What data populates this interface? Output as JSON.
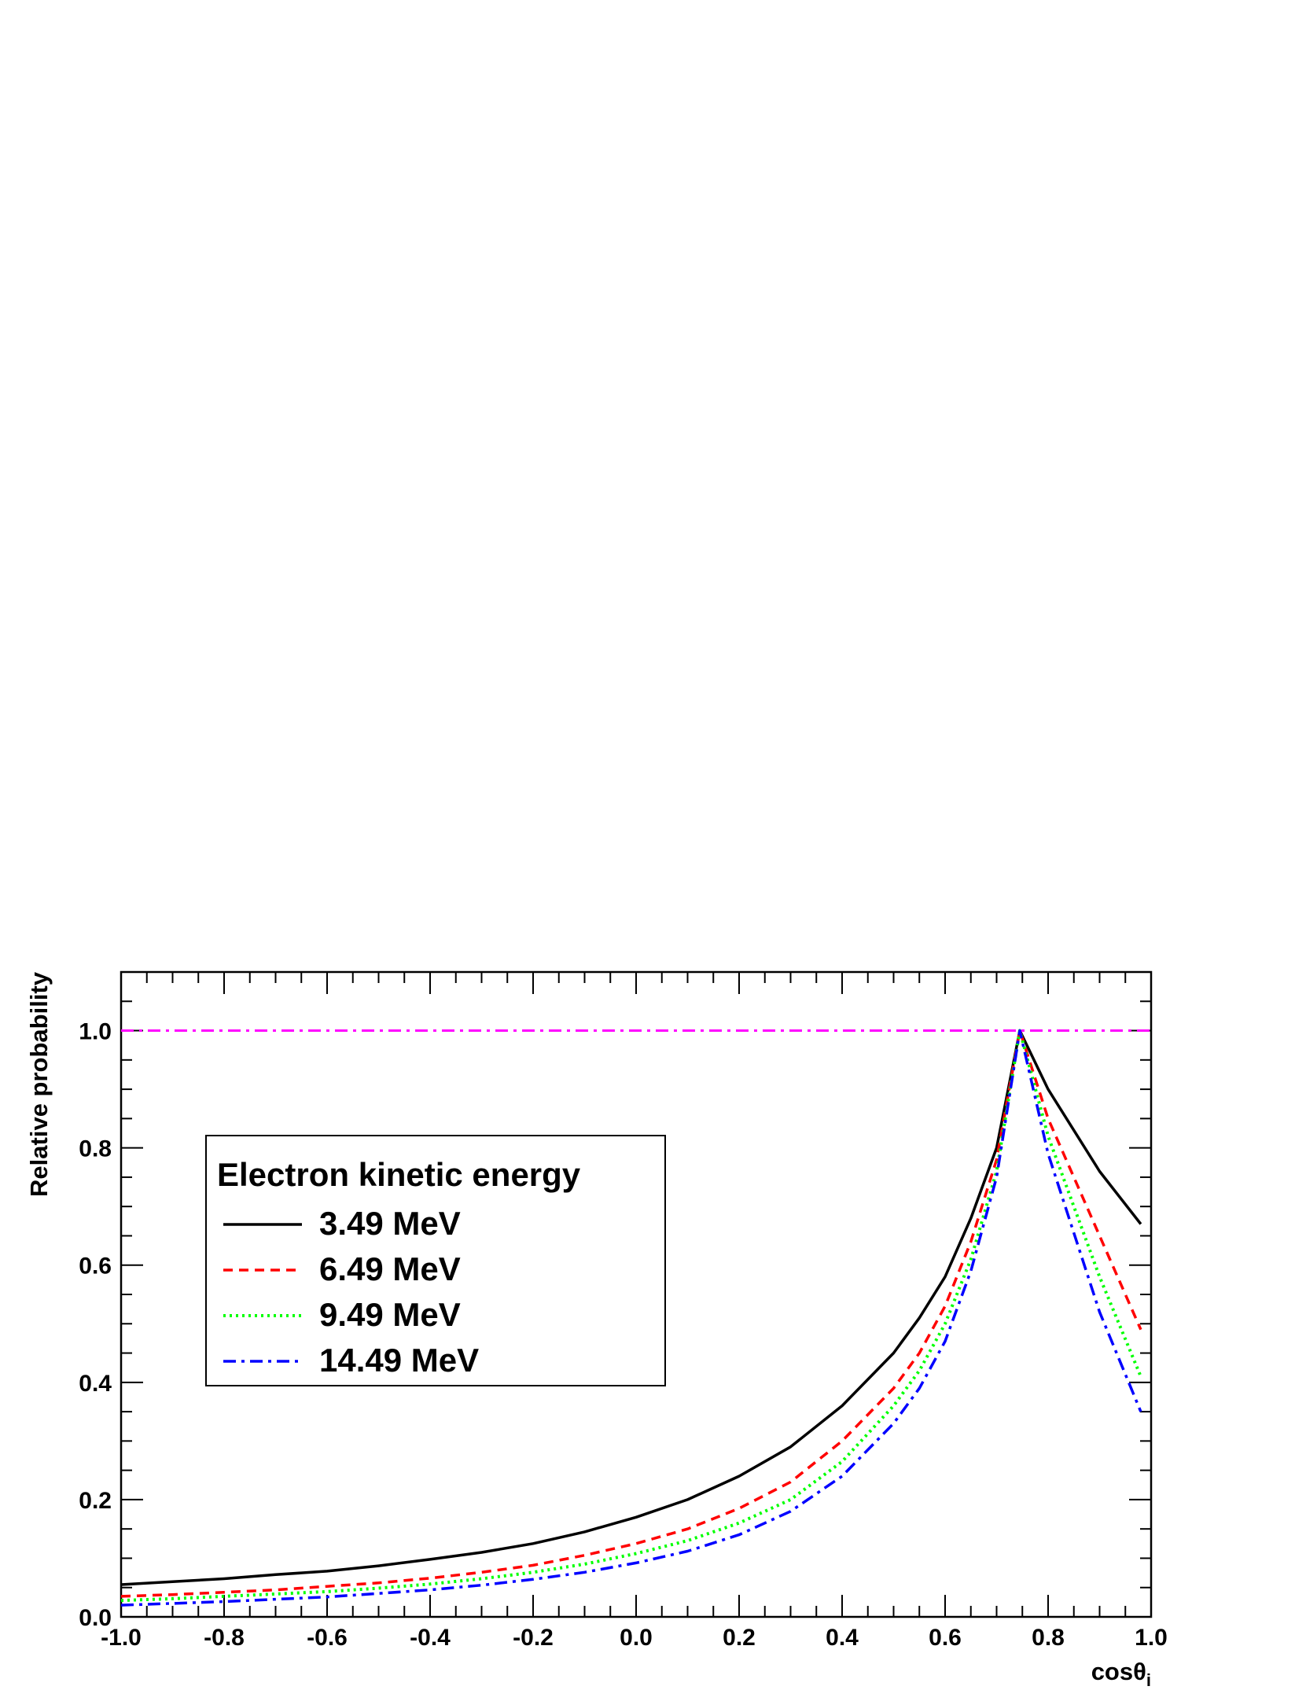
{
  "chart_data": {
    "type": "line",
    "xlabel": "cosθ",
    "xlabel_subscript": "i",
    "ylabel": "Relative probability",
    "xlim": [
      -1.0,
      1.0
    ],
    "ylim": [
      0.0,
      1.1
    ],
    "x_ticks": [
      "-1.0",
      "-0.8",
      "-0.6",
      "-0.4",
      "-0.2",
      "0.0",
      "0.2",
      "0.4",
      "0.6",
      "0.8",
      "1.0"
    ],
    "y_ticks": [
      "0.0",
      "0.2",
      "0.4",
      "0.6",
      "0.8",
      "1.0"
    ],
    "grid": false,
    "legend": {
      "title": "Electron kinetic energy",
      "placement": "middle-left"
    },
    "reference_line": {
      "y": 1.0,
      "color": "#ff00ff",
      "style": "dash-dot"
    },
    "x": [
      -1.0,
      -0.9,
      -0.8,
      -0.7,
      -0.6,
      -0.5,
      -0.4,
      -0.3,
      -0.2,
      -0.1,
      0.0,
      0.1,
      0.2,
      0.3,
      0.4,
      0.5,
      0.55,
      0.6,
      0.65,
      0.7,
      0.745,
      0.8,
      0.9,
      0.98
    ],
    "series": [
      {
        "name": "3.49 MeV",
        "color": "#000000",
        "style": "solid",
        "values": [
          0.055,
          0.06,
          0.065,
          0.072,
          0.078,
          0.087,
          0.098,
          0.11,
          0.125,
          0.145,
          0.17,
          0.2,
          0.24,
          0.29,
          0.36,
          0.45,
          0.51,
          0.58,
          0.68,
          0.8,
          1.0,
          0.9,
          0.76,
          0.67
        ]
      },
      {
        "name": "6.49 MeV",
        "color": "#ff0000",
        "style": "dashed",
        "values": [
          0.035,
          0.038,
          0.042,
          0.046,
          0.052,
          0.058,
          0.066,
          0.076,
          0.088,
          0.105,
          0.125,
          0.15,
          0.185,
          0.23,
          0.3,
          0.39,
          0.45,
          0.53,
          0.64,
          0.78,
          1.0,
          0.85,
          0.65,
          0.49
        ]
      },
      {
        "name": "9.49 MeV",
        "color": "#00ff00",
        "style": "dotted",
        "values": [
          0.028,
          0.031,
          0.035,
          0.039,
          0.043,
          0.049,
          0.056,
          0.065,
          0.076,
          0.09,
          0.108,
          0.13,
          0.16,
          0.2,
          0.265,
          0.36,
          0.42,
          0.5,
          0.61,
          0.76,
          1.0,
          0.82,
          0.58,
          0.41
        ]
      },
      {
        "name": "14.49 MeV",
        "color": "#0000ff",
        "style": "dash-dot",
        "values": [
          0.02,
          0.023,
          0.026,
          0.03,
          0.034,
          0.04,
          0.046,
          0.054,
          0.064,
          0.076,
          0.092,
          0.112,
          0.14,
          0.18,
          0.24,
          0.33,
          0.39,
          0.47,
          0.59,
          0.75,
          1.0,
          0.79,
          0.52,
          0.35
        ]
      }
    ]
  }
}
